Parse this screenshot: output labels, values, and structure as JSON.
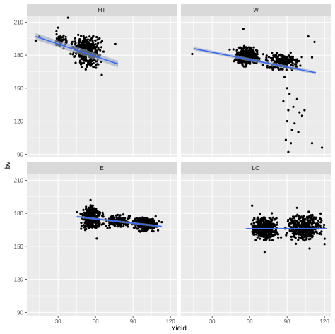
{
  "chart_data": {
    "type": "scatter",
    "xlabel": "Yield",
    "ylabel": "bv",
    "xlim": [
      5,
      125
    ],
    "ylim": [
      87,
      216
    ],
    "x_ticks": [
      30,
      60,
      90,
      120
    ],
    "x_tick_labels": [
      "30",
      "60",
      "90",
      "120"
    ],
    "y_ticks": [
      90,
      120,
      150,
      180,
      210
    ],
    "y_tick_labels": [
      "90",
      "120",
      "150",
      "180",
      "210"
    ],
    "grid": true,
    "legend": "none",
    "colors": {
      "panel_bg": "#ebebeb",
      "strip_bg": "#d9d9d9",
      "grid": "#ffffff",
      "point": "#000000",
      "fit_line": "#3366ff",
      "ci_band": "#99a6b8"
    },
    "facets": [
      {
        "label": "HT",
        "fit": {
          "x": [
            12,
            78
          ],
          "y": [
            197,
            172
          ],
          "ci": 3
        },
        "clusters": [
          {
            "n": 360,
            "xr": [
              38,
              68
            ],
            "yr": [
              166,
              202
            ]
          },
          {
            "n": 40,
            "xr": [
              25,
              40
            ],
            "yr": [
              182,
              203
            ]
          }
        ],
        "points": [
          [
            12,
            193
          ],
          [
            15,
            197
          ],
          [
            30,
            205
          ],
          [
            38,
            214
          ],
          [
            76,
            190
          ],
          [
            65,
            162
          ]
        ]
      },
      {
        "label": "W",
        "fit": {
          "x": [
            15,
            113
          ],
          "y": [
            186,
            164
          ],
          "ci": 1.5
        },
        "clusters": [
          {
            "n": 330,
            "xr": [
              45,
              70
            ],
            "yr": [
              168,
              190
            ]
          },
          {
            "n": 220,
            "xr": [
              68,
              105
            ],
            "yr": [
              163,
              185
            ]
          }
        ],
        "points": [
          [
            14,
            181
          ],
          [
            44,
            185
          ],
          [
            55,
            204
          ],
          [
            85,
            167
          ],
          [
            110,
            178
          ],
          [
            88,
            160
          ],
          [
            90,
            150
          ],
          [
            92,
            145
          ],
          [
            87,
            138
          ],
          [
            91,
            130
          ],
          [
            95,
            133
          ],
          [
            100,
            128
          ],
          [
            102,
            125
          ],
          [
            98,
            140
          ],
          [
            104,
            130
          ],
          [
            90,
            120
          ],
          [
            96,
            118
          ],
          [
            94,
            112
          ],
          [
            99,
            110
          ],
          [
            93,
            100
          ],
          [
            89,
            103
          ],
          [
            91,
            92
          ],
          [
            118,
            96
          ],
          [
            112,
            192
          ],
          [
            107,
            197
          ],
          [
            110,
            100
          ]
        ]
      },
      {
        "label": "E",
        "fit": {
          "x": [
            45,
            113
          ],
          "y": [
            177,
            168
          ],
          "ci": 1
        },
        "clusters": [
          {
            "n": 280,
            "xr": [
              46,
              68
            ],
            "yr": [
              162,
              190
            ]
          },
          {
            "n": 160,
            "xr": [
              65,
              90
            ],
            "yr": [
              165,
              180
            ]
          },
          {
            "n": 260,
            "xr": [
              87,
              113
            ],
            "yr": [
              161,
              179
            ]
          }
        ],
        "points": [
          [
            45,
            181
          ],
          [
            56,
            192
          ],
          [
            61,
            157
          ],
          [
            113,
            172
          ]
        ]
      },
      {
        "label": "LO",
        "fit": {
          "x": [
            57,
            122
          ],
          "y": [
            166,
            166
          ],
          "ci": 0.7
        },
        "clusters": [
          {
            "n": 380,
            "xr": [
              57,
              87
            ],
            "yr": [
              152,
              182
            ]
          },
          {
            "n": 380,
            "xr": [
              86,
              122
            ],
            "yr": [
              151,
              183
            ]
          }
        ],
        "points": [
          [
            62,
            187
          ],
          [
            98,
            185
          ],
          [
            108,
            148
          ],
          [
            72,
            145
          ],
          [
            120,
            152
          ]
        ]
      }
    ]
  }
}
